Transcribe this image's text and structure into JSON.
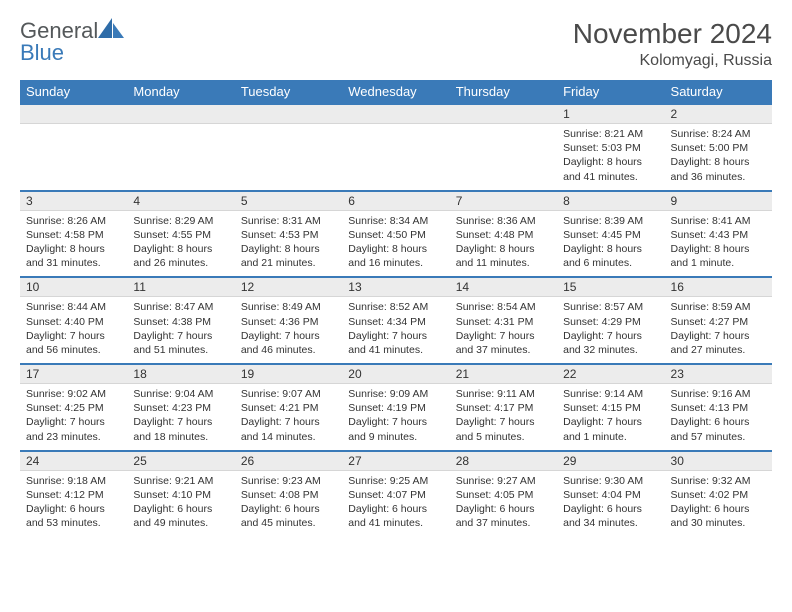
{
  "brand": {
    "part1": "General",
    "part2": "Blue"
  },
  "title": "November 2024",
  "location": "Kolomyagi, Russia",
  "colors": {
    "header_bg": "#3a7ab8",
    "daynum_bg": "#ececec",
    "row_border": "#3a7ab8",
    "text": "#333333",
    "title_text": "#4a4a4a"
  },
  "day_headers": [
    "Sunday",
    "Monday",
    "Tuesday",
    "Wednesday",
    "Thursday",
    "Friday",
    "Saturday"
  ],
  "weeks": [
    {
      "nums": [
        "",
        "",
        "",
        "",
        "",
        "1",
        "2"
      ],
      "cells": [
        null,
        null,
        null,
        null,
        null,
        {
          "sunrise": "8:21 AM",
          "sunset": "5:03 PM",
          "daylight": "Daylight: 8 hours and 41 minutes."
        },
        {
          "sunrise": "8:24 AM",
          "sunset": "5:00 PM",
          "daylight": "Daylight: 8 hours and 36 minutes."
        }
      ]
    },
    {
      "nums": [
        "3",
        "4",
        "5",
        "6",
        "7",
        "8",
        "9"
      ],
      "cells": [
        {
          "sunrise": "8:26 AM",
          "sunset": "4:58 PM",
          "daylight": "Daylight: 8 hours and 31 minutes."
        },
        {
          "sunrise": "8:29 AM",
          "sunset": "4:55 PM",
          "daylight": "Daylight: 8 hours and 26 minutes."
        },
        {
          "sunrise": "8:31 AM",
          "sunset": "4:53 PM",
          "daylight": "Daylight: 8 hours and 21 minutes."
        },
        {
          "sunrise": "8:34 AM",
          "sunset": "4:50 PM",
          "daylight": "Daylight: 8 hours and 16 minutes."
        },
        {
          "sunrise": "8:36 AM",
          "sunset": "4:48 PM",
          "daylight": "Daylight: 8 hours and 11 minutes."
        },
        {
          "sunrise": "8:39 AM",
          "sunset": "4:45 PM",
          "daylight": "Daylight: 8 hours and 6 minutes."
        },
        {
          "sunrise": "8:41 AM",
          "sunset": "4:43 PM",
          "daylight": "Daylight: 8 hours and 1 minute."
        }
      ]
    },
    {
      "nums": [
        "10",
        "11",
        "12",
        "13",
        "14",
        "15",
        "16"
      ],
      "cells": [
        {
          "sunrise": "8:44 AM",
          "sunset": "4:40 PM",
          "daylight": "Daylight: 7 hours and 56 minutes."
        },
        {
          "sunrise": "8:47 AM",
          "sunset": "4:38 PM",
          "daylight": "Daylight: 7 hours and 51 minutes."
        },
        {
          "sunrise": "8:49 AM",
          "sunset": "4:36 PM",
          "daylight": "Daylight: 7 hours and 46 minutes."
        },
        {
          "sunrise": "8:52 AM",
          "sunset": "4:34 PM",
          "daylight": "Daylight: 7 hours and 41 minutes."
        },
        {
          "sunrise": "8:54 AM",
          "sunset": "4:31 PM",
          "daylight": "Daylight: 7 hours and 37 minutes."
        },
        {
          "sunrise": "8:57 AM",
          "sunset": "4:29 PM",
          "daylight": "Daylight: 7 hours and 32 minutes."
        },
        {
          "sunrise": "8:59 AM",
          "sunset": "4:27 PM",
          "daylight": "Daylight: 7 hours and 27 minutes."
        }
      ]
    },
    {
      "nums": [
        "17",
        "18",
        "19",
        "20",
        "21",
        "22",
        "23"
      ],
      "cells": [
        {
          "sunrise": "9:02 AM",
          "sunset": "4:25 PM",
          "daylight": "Daylight: 7 hours and 23 minutes."
        },
        {
          "sunrise": "9:04 AM",
          "sunset": "4:23 PM",
          "daylight": "Daylight: 7 hours and 18 minutes."
        },
        {
          "sunrise": "9:07 AM",
          "sunset": "4:21 PM",
          "daylight": "Daylight: 7 hours and 14 minutes."
        },
        {
          "sunrise": "9:09 AM",
          "sunset": "4:19 PM",
          "daylight": "Daylight: 7 hours and 9 minutes."
        },
        {
          "sunrise": "9:11 AM",
          "sunset": "4:17 PM",
          "daylight": "Daylight: 7 hours and 5 minutes."
        },
        {
          "sunrise": "9:14 AM",
          "sunset": "4:15 PM",
          "daylight": "Daylight: 7 hours and 1 minute."
        },
        {
          "sunrise": "9:16 AM",
          "sunset": "4:13 PM",
          "daylight": "Daylight: 6 hours and 57 minutes."
        }
      ]
    },
    {
      "nums": [
        "24",
        "25",
        "26",
        "27",
        "28",
        "29",
        "30"
      ],
      "cells": [
        {
          "sunrise": "9:18 AM",
          "sunset": "4:12 PM",
          "daylight": "Daylight: 6 hours and 53 minutes."
        },
        {
          "sunrise": "9:21 AM",
          "sunset": "4:10 PM",
          "daylight": "Daylight: 6 hours and 49 minutes."
        },
        {
          "sunrise": "9:23 AM",
          "sunset": "4:08 PM",
          "daylight": "Daylight: 6 hours and 45 minutes."
        },
        {
          "sunrise": "9:25 AM",
          "sunset": "4:07 PM",
          "daylight": "Daylight: 6 hours and 41 minutes."
        },
        {
          "sunrise": "9:27 AM",
          "sunset": "4:05 PM",
          "daylight": "Daylight: 6 hours and 37 minutes."
        },
        {
          "sunrise": "9:30 AM",
          "sunset": "4:04 PM",
          "daylight": "Daylight: 6 hours and 34 minutes."
        },
        {
          "sunrise": "9:32 AM",
          "sunset": "4:02 PM",
          "daylight": "Daylight: 6 hours and 30 minutes."
        }
      ]
    }
  ]
}
